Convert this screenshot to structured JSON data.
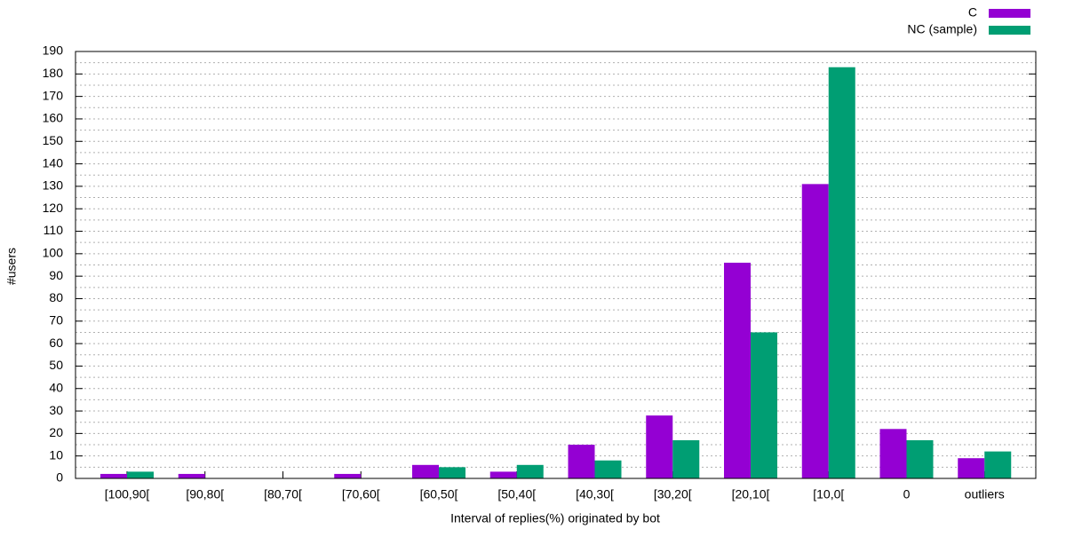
{
  "chart_data": {
    "type": "bar",
    "x_label": "Interval of replies(%) originated by bot",
    "y_label": "#users",
    "categories": [
      "[100,90[",
      "[90,80[",
      "[80,70[",
      "[70,60[",
      "[60,50[",
      "[50,40[",
      "[40,30[",
      "[30,20[",
      "[20,10[",
      "[10,0[",
      "0",
      "outliers"
    ],
    "series": [
      {
        "name": "C",
        "color": "#9400d3",
        "values": [
          2,
          2,
          0,
          2,
          6,
          3,
          15,
          28,
          96,
          131,
          22,
          9
        ]
      },
      {
        "name": "NC (sample)",
        "color": "#009e73",
        "values": [
          3,
          0,
          0,
          0,
          5,
          6,
          8,
          17,
          65,
          183,
          17,
          12
        ]
      }
    ],
    "ylim": [
      0,
      190
    ],
    "yticks": [
      0,
      10,
      20,
      30,
      40,
      50,
      60,
      70,
      80,
      90,
      100,
      110,
      120,
      130,
      140,
      150,
      160,
      170,
      180,
      190
    ],
    "grid": true,
    "legend": "top-right"
  }
}
